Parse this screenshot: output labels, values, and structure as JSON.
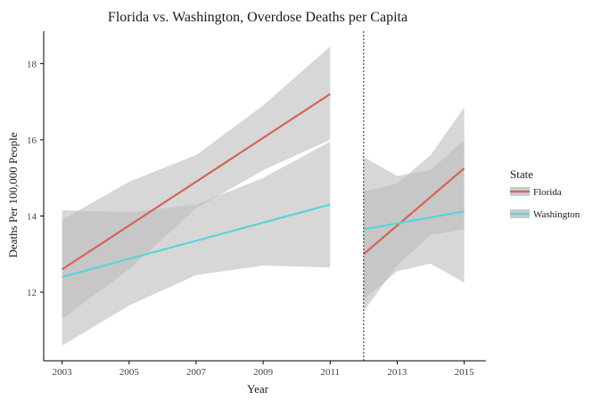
{
  "chart_data": {
    "type": "line",
    "title": "Florida vs. Washington, Overdose Deaths per Capita",
    "xlabel": "Year",
    "ylabel": "Deaths Per 100,000 People",
    "xlim": [
      2002.45,
      2015.65
    ],
    "ylim": [
      10.2,
      18.85
    ],
    "x_ticks": [
      2003,
      2005,
      2007,
      2009,
      2011,
      2013,
      2015
    ],
    "y_ticks": [
      12,
      14,
      16,
      18
    ],
    "grid": false,
    "vline": 2012,
    "legend": {
      "title": "State",
      "position": "right"
    },
    "series": [
      {
        "name": "Florida",
        "color": "#d4645a",
        "segments": [
          {
            "x": [
              2003,
              2011
            ],
            "y": [
              12.6,
              17.2
            ],
            "band_x": [
              2003,
              2005,
              2007,
              2009,
              2011
            ],
            "band_lower": [
              11.3,
              12.6,
              14.2,
              15.2,
              16.0
            ],
            "band_upper": [
              13.9,
              14.9,
              15.6,
              16.9,
              18.45
            ]
          },
          {
            "x": [
              2012,
              2015
            ],
            "y": [
              13.0,
              15.25
            ],
            "band_x": [
              2012,
              2013,
              2014,
              2015
            ],
            "band_lower": [
              11.5,
              12.7,
              13.5,
              13.65
            ],
            "band_upper": [
              14.65,
              14.85,
              15.6,
              16.85
            ]
          }
        ]
      },
      {
        "name": "Washington",
        "color": "#5bd3dc",
        "segments": [
          {
            "x": [
              2003,
              2011
            ],
            "y": [
              12.4,
              14.3
            ],
            "band_x": [
              2003,
              2005,
              2007,
              2009,
              2011
            ],
            "band_lower": [
              10.6,
              11.65,
              12.45,
              12.7,
              12.65
            ],
            "band_upper": [
              14.15,
              14.1,
              14.3,
              15.0,
              15.95
            ]
          },
          {
            "x": [
              2012,
              2015
            ],
            "y": [
              13.65,
              14.12
            ],
            "band_x": [
              2012,
              2013,
              2014,
              2015
            ],
            "band_lower": [
              11.8,
              12.55,
              12.75,
              12.25
            ],
            "band_upper": [
              15.55,
              15.05,
              15.2,
              16.0
            ]
          }
        ]
      }
    ],
    "band_color": "#bdbdbd"
  }
}
